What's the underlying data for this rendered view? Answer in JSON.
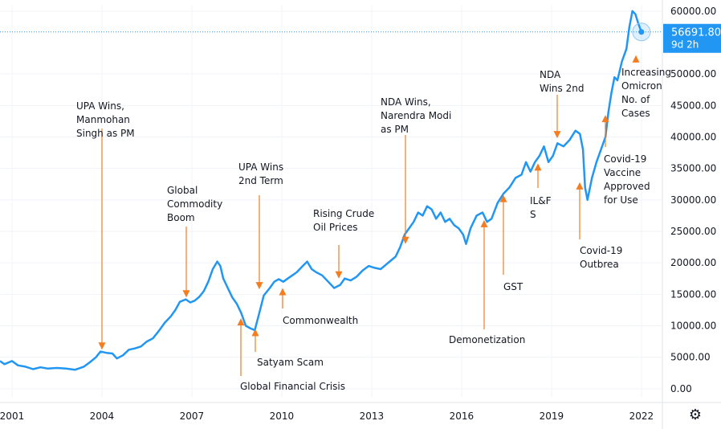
{
  "chart_data": {
    "type": "line",
    "title": "",
    "xlabel": "",
    "ylabel": "",
    "xlim": [
      2000.6,
      2022.7
    ],
    "ylim": [
      -1300,
      61000
    ],
    "x_ticks": [
      {
        "value": 2001,
        "label": "2001"
      },
      {
        "value": 2004,
        "label": "2004"
      },
      {
        "value": 2007,
        "label": "2007"
      },
      {
        "value": 2010,
        "label": "2010"
      },
      {
        "value": 2013,
        "label": "2013"
      },
      {
        "value": 2016,
        "label": "2016"
      },
      {
        "value": 2019,
        "label": "2019"
      },
      {
        "value": 2022,
        "label": "2022"
      }
    ],
    "y_ticks": [
      {
        "value": 60000,
        "label": "60000.00"
      },
      {
        "value": 50000,
        "label": "50000.00"
      },
      {
        "value": 45000,
        "label": "45000.00"
      },
      {
        "value": 40000,
        "label": "40000.00"
      },
      {
        "value": 35000,
        "label": "35000.00"
      },
      {
        "value": 30000,
        "label": "30000.00"
      },
      {
        "value": 25000,
        "label": "25000.00"
      },
      {
        "value": 20000,
        "label": "20000.00"
      },
      {
        "value": 15000,
        "label": "15000.00"
      },
      {
        "value": 10000,
        "label": "10000.00"
      },
      {
        "value": 5000,
        "label": "5000.00"
      },
      {
        "value": 0,
        "label": "0.00"
      }
    ],
    "series": [
      {
        "color": "#2196f3",
        "x": [
          2000.6,
          2000.75,
          2001.0,
          2001.2,
          2001.45,
          2001.7,
          2001.95,
          2002.2,
          2002.5,
          2002.8,
          2003.1,
          2003.4,
          2003.6,
          2003.8,
          2003.95,
          2004.15,
          2004.35,
          2004.5,
          2004.7,
          2004.9,
          2005.1,
          2005.3,
          2005.5,
          2005.7,
          2005.9,
          2006.1,
          2006.3,
          2006.45,
          2006.6,
          2006.8,
          2006.95,
          2007.1,
          2007.25,
          2007.4,
          2007.55,
          2007.7,
          2007.85,
          2007.95,
          2008.05,
          2008.2,
          2008.35,
          2008.5,
          2008.65,
          2008.8,
          2008.95,
          2009.1,
          2009.25,
          2009.4,
          2009.6,
          2009.75,
          2009.9,
          2010.05,
          2010.2,
          2010.35,
          2010.5,
          2010.7,
          2010.85,
          2011.0,
          2011.15,
          2011.35,
          2011.55,
          2011.75,
          2011.95,
          2012.1,
          2012.3,
          2012.5,
          2012.7,
          2012.9,
          2013.1,
          2013.3,
          2013.5,
          2013.65,
          2013.8,
          2013.95,
          2014.1,
          2014.25,
          2014.4,
          2014.55,
          2014.7,
          2014.85,
          2015.0,
          2015.15,
          2015.3,
          2015.45,
          2015.6,
          2015.75,
          2015.9,
          2016.05,
          2016.15,
          2016.3,
          2016.5,
          2016.7,
          2016.85,
          2017.0,
          2017.2,
          2017.4,
          2017.6,
          2017.8,
          2018.0,
          2018.15,
          2018.3,
          2018.45,
          2018.6,
          2018.75,
          2018.9,
          2019.05,
          2019.2,
          2019.4,
          2019.6,
          2019.8,
          2019.95,
          2020.05,
          2020.12,
          2020.2,
          2020.35,
          2020.5,
          2020.65,
          2020.8,
          2020.9,
          2021.0,
          2021.1,
          2021.2,
          2021.35,
          2021.5,
          2021.6,
          2021.7,
          2021.8,
          2021.9,
          2022.0
        ],
        "values": [
          4400,
          3900,
          4400,
          3700,
          3500,
          3100,
          3400,
          3200,
          3300,
          3200,
          3000,
          3500,
          4200,
          5000,
          5900,
          5700,
          5600,
          4800,
          5300,
          6200,
          6400,
          6700,
          7500,
          8000,
          9200,
          10500,
          11500,
          12500,
          13800,
          14200,
          13700,
          14000,
          14600,
          15500,
          17000,
          19000,
          20200,
          19500,
          17500,
          16000,
          14500,
          13500,
          12000,
          10000,
          9600,
          9300,
          12000,
          14800,
          16000,
          17000,
          17400,
          17000,
          17500,
          18000,
          18500,
          19500,
          20200,
          19000,
          18500,
          18000,
          17000,
          16000,
          16500,
          17500,
          17200,
          17800,
          18800,
          19500,
          19200,
          19000,
          19800,
          20400,
          21000,
          22500,
          24500,
          25500,
          26500,
          28000,
          27500,
          29000,
          28500,
          27000,
          28000,
          26500,
          27000,
          26000,
          25500,
          24500,
          23000,
          25500,
          27500,
          28000,
          26500,
          27000,
          29500,
          31000,
          32000,
          33500,
          34000,
          36000,
          34500,
          36000,
          37000,
          38500,
          36000,
          37000,
          39000,
          38500,
          39500,
          41000,
          40500,
          38000,
          32000,
          30000,
          33500,
          36000,
          38000,
          40000,
          44000,
          47000,
          49500,
          49000,
          52000,
          54000,
          57500,
          60000,
          59500,
          58000,
          56691
        ]
      }
    ],
    "last_value": {
      "value": 56691.8,
      "label": "56691.80",
      "countdown": "9d 2h"
    },
    "annotations": [
      {
        "lines": [
          "UPA Wins,",
          "Manmohan",
          "Singh as PM"
        ],
        "x": 2004.0,
        "y": 6200,
        "direction": "down"
      },
      {
        "lines": [
          "Global",
          "Commodity",
          "Boom"
        ],
        "x": 2006.8,
        "y": 14500,
        "direction": "down"
      },
      {
        "lines": [
          "UPA Wins",
          "2nd Term"
        ],
        "x": 2009.3,
        "y": 15800,
        "direction": "down"
      },
      {
        "lines": [
          "Rising Crude",
          "Oil Prices"
        ],
        "x": 2012.0,
        "y": 17500,
        "direction": "down"
      },
      {
        "lines": [
          "NDA Wins,",
          "Narendra Modi",
          "as PM"
        ],
        "x": 2014.2,
        "y": 23000,
        "direction": "down"
      },
      {
        "lines": [
          "NDA",
          "Wins 2nd"
        ],
        "x": 2019.3,
        "y": 39800,
        "direction": "down"
      },
      {
        "lines": [
          "Increasing",
          "Omicron",
          "No. of",
          "Cases"
        ],
        "x": 2021.75,
        "y": 53000,
        "direction": "up"
      },
      {
        "lines": [
          "Commonwealth"
        ],
        "x": 2010.2,
        "y": 16000,
        "direction": "up"
      },
      {
        "lines": [
          "Satyam Scam"
        ],
        "x": 2009.2,
        "y": 9500,
        "direction": "up"
      },
      {
        "lines": [
          "Global Financial Crisis"
        ],
        "x": 2008.5,
        "y": 11200,
        "direction": "up"
      },
      {
        "lines": [
          "Demonetization"
        ],
        "x": 2016.75,
        "y": 26800,
        "direction": "up"
      },
      {
        "lines": [
          "GST"
        ],
        "x": 2017.45,
        "y": 30800,
        "direction": "up"
      },
      {
        "lines": [
          "IL&F",
          "S"
        ],
        "x": 2018.65,
        "y": 35800,
        "direction": "up"
      },
      {
        "lines": [
          "Covid-19",
          "Outbrea"
        ],
        "x": 2020.0,
        "y": 32800,
        "direction": "up"
      },
      {
        "lines": [
          "Covid-19",
          "Vaccine",
          "Approved",
          "for Use"
        ],
        "x": 2020.85,
        "y": 43500,
        "direction": "up"
      }
    ],
    "grid": true,
    "legend": "none"
  },
  "icons": {
    "settings": "gear-icon"
  },
  "colors": {
    "line": "#2196f3",
    "arrow": "#f57c1f",
    "grid": "#f0f3fa",
    "badge": "#2196f3"
  }
}
